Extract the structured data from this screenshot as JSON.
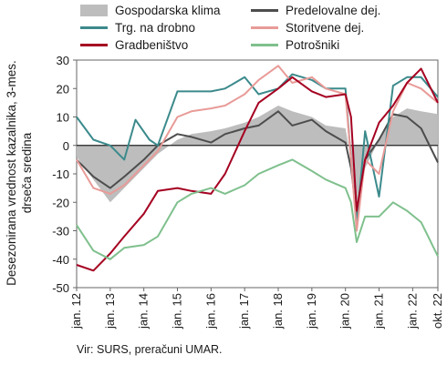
{
  "chart_data": {
    "type": "line",
    "ylabel": "Desezonirana vrednost kazalnika, 3-mes. drseča sredina",
    "xlabel": "",
    "ylim": [
      -50,
      30
    ],
    "yticks": [
      30,
      20,
      10,
      0,
      -10,
      -20,
      -30,
      -40,
      -50
    ],
    "xlim": [
      "2012-01",
      "2022-10"
    ],
    "xticks": [
      {
        "label": "jan. 12",
        "date": "2012-01"
      },
      {
        "label": "jan. 13",
        "date": "2013-01"
      },
      {
        "label": "jan. 14",
        "date": "2014-01"
      },
      {
        "label": "jan. 15",
        "date": "2015-01"
      },
      {
        "label": "jan. 16",
        "date": "2016-01"
      },
      {
        "label": "jan. 17",
        "date": "2017-01"
      },
      {
        "label": "jan. 18",
        "date": "2018-01"
      },
      {
        "label": "jan. 19",
        "date": "2019-01"
      },
      {
        "label": "jan. 20",
        "date": "2020-01"
      },
      {
        "label": "jan. 21",
        "date": "2021-01"
      },
      {
        "label": "jan. 22",
        "date": "2022-01"
      },
      {
        "label": "okt. 22",
        "date": "2022-10"
      }
    ],
    "grid": false,
    "legend_position": "top",
    "source_note": "Vir: SURS, preračuni UMAR.",
    "series": [
      {
        "name": "Gospodarska klima",
        "kind": "area",
        "color": "#bdbdbd",
        "points": [
          [
            "2012-01",
            -4
          ],
          [
            "2012-07",
            -12
          ],
          [
            "2013-01",
            -20
          ],
          [
            "2013-06",
            -15
          ],
          [
            "2014-01",
            -8
          ],
          [
            "2014-06",
            -3
          ],
          [
            "2015-01",
            2
          ],
          [
            "2015-06",
            4
          ],
          [
            "2016-01",
            5
          ],
          [
            "2016-06",
            6
          ],
          [
            "2017-01",
            8
          ],
          [
            "2017-06",
            10
          ],
          [
            "2018-01",
            14
          ],
          [
            "2018-06",
            12
          ],
          [
            "2019-01",
            10
          ],
          [
            "2019-06",
            7
          ],
          [
            "2020-01",
            6
          ],
          [
            "2020-03",
            -5
          ],
          [
            "2020-05",
            -23
          ],
          [
            "2020-08",
            -8
          ],
          [
            "2021-01",
            2
          ],
          [
            "2021-06",
            10
          ],
          [
            "2021-11",
            13
          ],
          [
            "2022-04",
            12
          ],
          [
            "2022-10",
            11
          ]
        ]
      },
      {
        "name": "Predelovalne dej.",
        "kind": "line",
        "color": "#4d4d4d",
        "points": [
          [
            "2012-01",
            -5
          ],
          [
            "2012-07",
            -11
          ],
          [
            "2013-01",
            -15
          ],
          [
            "2013-06",
            -11
          ],
          [
            "2014-01",
            -5
          ],
          [
            "2014-06",
            0
          ],
          [
            "2015-01",
            4
          ],
          [
            "2015-06",
            3
          ],
          [
            "2016-01",
            1
          ],
          [
            "2016-06",
            4
          ],
          [
            "2017-01",
            6
          ],
          [
            "2017-06",
            7
          ],
          [
            "2018-01",
            12
          ],
          [
            "2018-06",
            7
          ],
          [
            "2019-01",
            9
          ],
          [
            "2019-06",
            5
          ],
          [
            "2020-01",
            1
          ],
          [
            "2020-03",
            -8
          ],
          [
            "2020-05",
            -24
          ],
          [
            "2020-08",
            -5
          ],
          [
            "2021-01",
            2
          ],
          [
            "2021-06",
            11
          ],
          [
            "2021-11",
            10
          ],
          [
            "2022-04",
            6
          ],
          [
            "2022-10",
            -6
          ]
        ]
      },
      {
        "name": "Trg. na drobno",
        "kind": "line",
        "color": "#3c8a8c",
        "points": [
          [
            "2012-01",
            10
          ],
          [
            "2012-07",
            2
          ],
          [
            "2013-01",
            0
          ],
          [
            "2013-06",
            -5
          ],
          [
            "2013-10",
            9
          ],
          [
            "2014-03",
            2
          ],
          [
            "2014-06",
            0
          ],
          [
            "2015-01",
            19
          ],
          [
            "2015-06",
            19
          ],
          [
            "2016-01",
            19
          ],
          [
            "2016-06",
            20
          ],
          [
            "2017-01",
            24
          ],
          [
            "2017-06",
            18
          ],
          [
            "2018-01",
            20
          ],
          [
            "2018-06",
            25
          ],
          [
            "2019-01",
            23
          ],
          [
            "2019-06",
            20
          ],
          [
            "2020-01",
            20
          ],
          [
            "2020-03",
            -5
          ],
          [
            "2020-05",
            -28
          ],
          [
            "2020-08",
            5
          ],
          [
            "2021-01",
            -18
          ],
          [
            "2021-06",
            21
          ],
          [
            "2021-11",
            24
          ],
          [
            "2022-04",
            24
          ],
          [
            "2022-10",
            17
          ]
        ]
      },
      {
        "name": "Storitvene dej.",
        "kind": "line",
        "color": "#e89b98",
        "points": [
          [
            "2012-01",
            -5
          ],
          [
            "2012-07",
            -15
          ],
          [
            "2013-01",
            -17
          ],
          [
            "2013-06",
            -14
          ],
          [
            "2014-01",
            -7
          ],
          [
            "2014-06",
            -2
          ],
          [
            "2015-01",
            10
          ],
          [
            "2015-06",
            12
          ],
          [
            "2016-01",
            13
          ],
          [
            "2016-06",
            14
          ],
          [
            "2017-01",
            18
          ],
          [
            "2017-06",
            23
          ],
          [
            "2018-01",
            28
          ],
          [
            "2018-06",
            22
          ],
          [
            "2019-01",
            24
          ],
          [
            "2019-06",
            20
          ],
          [
            "2020-01",
            18
          ],
          [
            "2020-03",
            -5
          ],
          [
            "2020-05",
            -30
          ],
          [
            "2020-08",
            -5
          ],
          [
            "2021-01",
            -10
          ],
          [
            "2021-06",
            12
          ],
          [
            "2021-11",
            22
          ],
          [
            "2022-04",
            20
          ],
          [
            "2022-10",
            15
          ]
        ]
      },
      {
        "name": "Gradbeništvo",
        "kind": "line",
        "color": "#a50021",
        "points": [
          [
            "2012-01",
            -42
          ],
          [
            "2012-07",
            -44
          ],
          [
            "2013-01",
            -38
          ],
          [
            "2013-06",
            -32
          ],
          [
            "2014-01",
            -24
          ],
          [
            "2014-06",
            -16
          ],
          [
            "2015-01",
            -15
          ],
          [
            "2015-06",
            -16
          ],
          [
            "2016-01",
            -17
          ],
          [
            "2016-06",
            -10
          ],
          [
            "2017-01",
            5
          ],
          [
            "2017-06",
            15
          ],
          [
            "2018-01",
            20
          ],
          [
            "2018-06",
            24
          ],
          [
            "2019-01",
            19
          ],
          [
            "2019-06",
            17
          ],
          [
            "2020-01",
            18
          ],
          [
            "2020-03",
            10
          ],
          [
            "2020-05",
            -23
          ],
          [
            "2020-08",
            -5
          ],
          [
            "2021-01",
            8
          ],
          [
            "2021-06",
            14
          ],
          [
            "2021-11",
            22
          ],
          [
            "2022-04",
            27
          ],
          [
            "2022-10",
            15
          ]
        ]
      },
      {
        "name": "Potrošniki",
        "kind": "line",
        "color": "#7fc08d",
        "points": [
          [
            "2012-01",
            -28
          ],
          [
            "2012-07",
            -37
          ],
          [
            "2013-01",
            -40
          ],
          [
            "2013-06",
            -36
          ],
          [
            "2014-01",
            -35
          ],
          [
            "2014-06",
            -32
          ],
          [
            "2015-01",
            -20
          ],
          [
            "2015-06",
            -17
          ],
          [
            "2016-01",
            -15
          ],
          [
            "2016-06",
            -17
          ],
          [
            "2017-01",
            -14
          ],
          [
            "2017-06",
            -10
          ],
          [
            "2018-01",
            -7
          ],
          [
            "2018-06",
            -5
          ],
          [
            "2019-01",
            -9
          ],
          [
            "2019-06",
            -12
          ],
          [
            "2020-01",
            -15
          ],
          [
            "2020-03",
            -20
          ],
          [
            "2020-05",
            -34
          ],
          [
            "2020-08",
            -25
          ],
          [
            "2021-01",
            -25
          ],
          [
            "2021-06",
            -20
          ],
          [
            "2021-11",
            -23
          ],
          [
            "2022-04",
            -27
          ],
          [
            "2022-10",
            -39
          ]
        ]
      }
    ]
  }
}
